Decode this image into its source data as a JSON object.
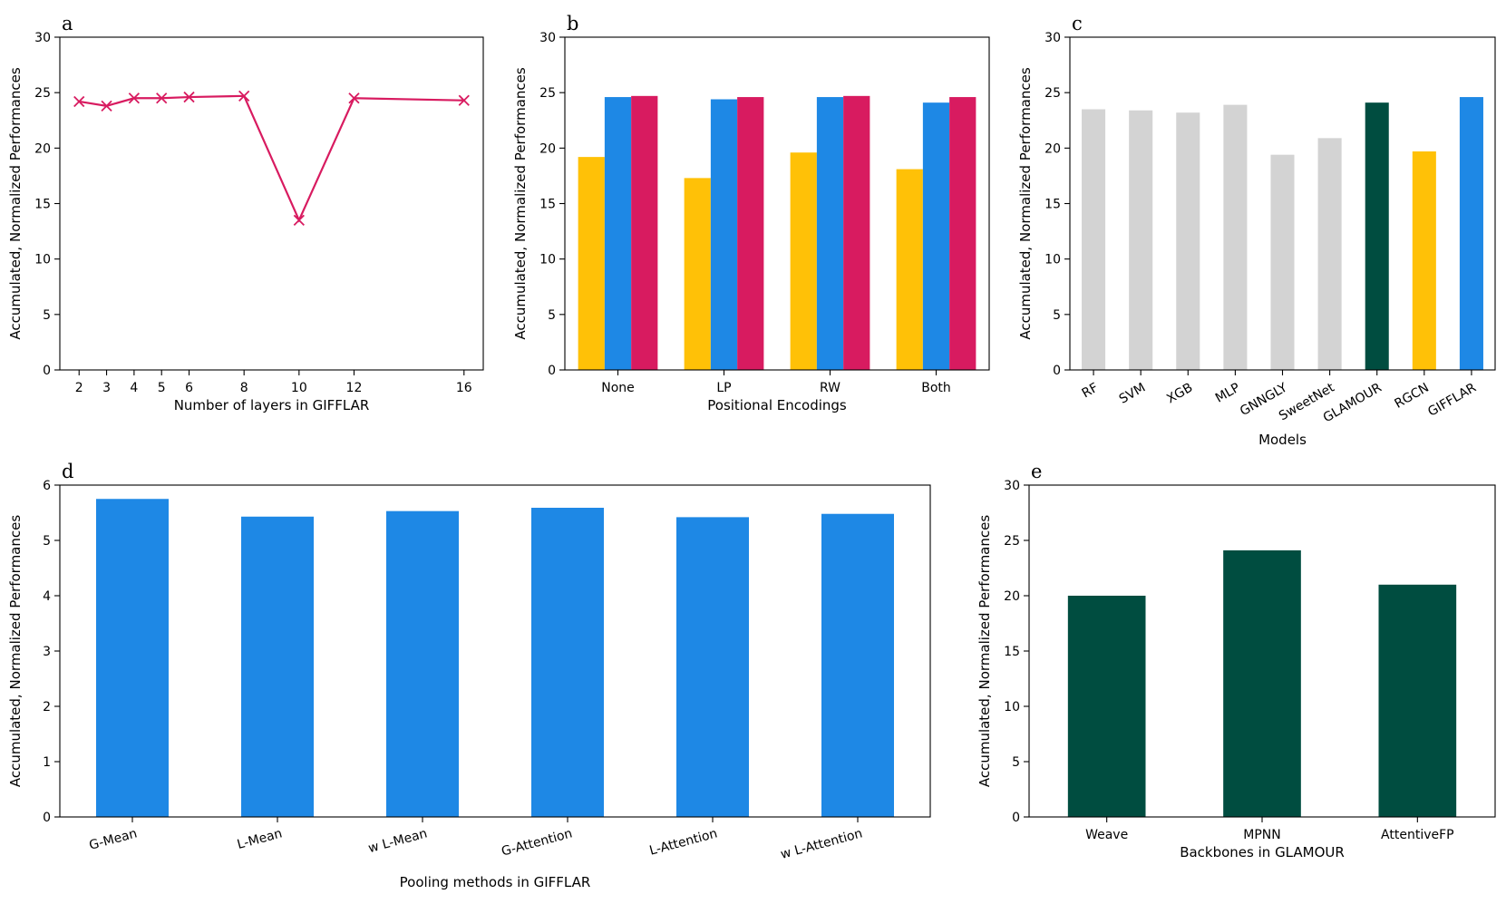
{
  "chart_data": [
    {
      "id": "a",
      "letter": "a",
      "type": "line",
      "xlabel": "Number of layers in GIFFLAR",
      "ylabel": "Accumulated, Normalized Performances",
      "ylim": [
        0,
        30
      ],
      "yticks": [
        0,
        5,
        10,
        15,
        20,
        25,
        30
      ],
      "xlim": [
        1.3,
        16.7
      ],
      "xticks": [
        2,
        3,
        4,
        5,
        6,
        8,
        10,
        12,
        16
      ],
      "x": [
        2,
        3,
        4,
        5,
        6,
        8,
        10,
        12,
        16
      ],
      "values": [
        24.2,
        23.8,
        24.5,
        24.5,
        24.6,
        24.7,
        13.5,
        24.5,
        24.3
      ],
      "marker": "x",
      "color": "#D81B60"
    },
    {
      "id": "b",
      "letter": "b",
      "type": "bar",
      "xlabel": "Positional Encodings",
      "ylabel": "Accumulated, Normalized Performances",
      "ylim": [
        0,
        30
      ],
      "yticks": [
        0,
        5,
        10,
        15,
        20,
        25,
        30
      ],
      "categories": [
        "None",
        "LP",
        "RW",
        "Both"
      ],
      "series": [
        {
          "color": "#FFC107",
          "values": [
            19.2,
            17.3,
            19.6,
            18.1
          ]
        },
        {
          "color": "#1E88E5",
          "values": [
            24.6,
            24.4,
            24.6,
            24.1
          ]
        },
        {
          "color": "#D81B60",
          "values": [
            24.7,
            24.6,
            24.7,
            24.6
          ]
        }
      ]
    },
    {
      "id": "c",
      "letter": "c",
      "type": "bar",
      "xlabel": "Models",
      "ylabel": "Accumulated, Normalized Performances",
      "ylim": [
        0,
        30
      ],
      "yticks": [
        0,
        5,
        10,
        15,
        20,
        25,
        30
      ],
      "rotated_labels": true,
      "categories": [
        "RF",
        "SVM",
        "XGB",
        "MLP",
        "GNNGLY",
        "SweetNet",
        "GLAMOUR",
        "RGCN",
        "GIFFLAR"
      ],
      "values": [
        23.5,
        23.4,
        23.2,
        23.9,
        19.4,
        20.9,
        24.1,
        19.7,
        24.6
      ],
      "colors": [
        "#D3D3D3",
        "#D3D3D3",
        "#D3D3D3",
        "#D3D3D3",
        "#D3D3D3",
        "#D3D3D3",
        "#004D40",
        "#FFC107",
        "#1E88E5"
      ]
    },
    {
      "id": "d",
      "letter": "d",
      "type": "bar",
      "xlabel": "Pooling methods in GIFFLAR",
      "ylabel": "Accumulated, Normalized Performances",
      "ylim": [
        0,
        6
      ],
      "yticks": [
        0,
        1,
        2,
        3,
        4,
        5,
        6
      ],
      "rotated_labels": true,
      "categories": [
        "G-Mean",
        "L-Mean",
        "w L-Mean",
        "G-Attention",
        "L-Attention",
        "w L-Attention"
      ],
      "values": [
        5.75,
        5.43,
        5.53,
        5.59,
        5.42,
        5.48
      ],
      "colors": [
        "#1E88E5",
        "#1E88E5",
        "#1E88E5",
        "#1E88E5",
        "#1E88E5",
        "#1E88E5"
      ]
    },
    {
      "id": "e",
      "letter": "e",
      "type": "bar",
      "xlabel": "Backbones in GLAMOUR",
      "ylabel": "Accumulated, Normalized Performances",
      "ylim": [
        0,
        30
      ],
      "yticks": [
        0,
        5,
        10,
        15,
        20,
        25,
        30
      ],
      "categories": [
        "Weave",
        "MPNN",
        "AttentiveFP"
      ],
      "values": [
        20.0,
        24.1,
        21.0
      ],
      "colors": [
        "#004D40",
        "#004D40",
        "#004D40"
      ]
    }
  ]
}
